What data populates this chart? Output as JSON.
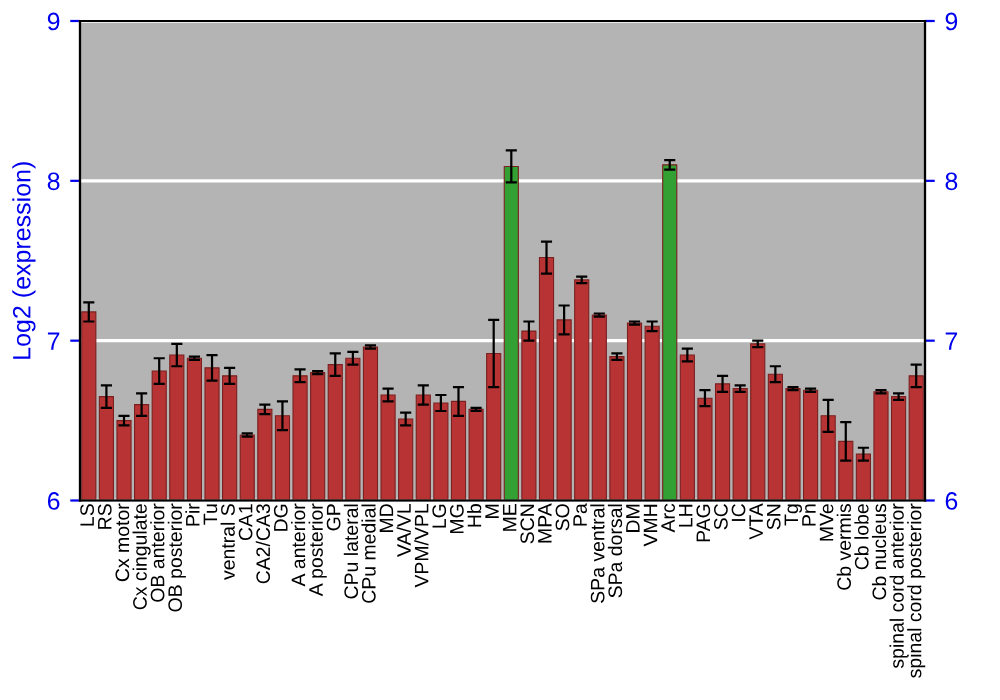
{
  "chart_data": {
    "type": "bar",
    "ylabel": "Log2 (expression)",
    "categories": [
      "LS",
      "RS",
      "Cx motor",
      "Cx cingulate",
      "OB anterior",
      "OB posterior",
      "Pir",
      "Tu",
      "ventral S",
      "CA1",
      "CA2/CA3",
      "DG",
      "A anterior",
      "A posterior",
      "GP",
      "CPu lateral",
      "CPu medial",
      "MD",
      "VA/VL",
      "VPM/VPL",
      "LG",
      "MG",
      "Hb",
      "M",
      "ME",
      "SCN",
      "MPA",
      "SO",
      "Pa",
      "SPa ventral",
      "SPa dorsal",
      "DM",
      "VMH",
      "Arc",
      "LH",
      "PAG",
      "SC",
      "IC",
      "VTA",
      "SN",
      "Tg",
      "Pn",
      "MVe",
      "Cb vermis",
      "Cb lobe",
      "Cb nucleus",
      "spinal cord anterior",
      "spinal cord posterior"
    ],
    "values": [
      7.18,
      6.65,
      6.5,
      6.6,
      6.81,
      6.91,
      6.89,
      6.83,
      6.78,
      6.41,
      6.57,
      6.53,
      6.78,
      6.8,
      6.85,
      6.89,
      6.96,
      6.66,
      6.51,
      6.66,
      6.61,
      6.62,
      6.57,
      6.92,
      8.09,
      7.06,
      7.52,
      7.13,
      7.38,
      7.16,
      6.9,
      7.11,
      7.09,
      8.1,
      6.91,
      6.64,
      6.73,
      6.7,
      6.98,
      6.79,
      6.7,
      6.69,
      6.53,
      6.37,
      6.29,
      6.68,
      6.65,
      6.78
    ],
    "errors": [
      0.06,
      0.07,
      0.03,
      0.07,
      0.08,
      0.07,
      0.01,
      0.08,
      0.05,
      0.01,
      0.03,
      0.09,
      0.04,
      0.01,
      0.07,
      0.04,
      0.01,
      0.04,
      0.04,
      0.06,
      0.05,
      0.09,
      0.01,
      0.21,
      0.1,
      0.06,
      0.1,
      0.09,
      0.02,
      0.01,
      0.02,
      0.01,
      0.03,
      0.03,
      0.04,
      0.05,
      0.05,
      0.02,
      0.02,
      0.05,
      0.01,
      0.01,
      0.1,
      0.12,
      0.04,
      0.01,
      0.02,
      0.07
    ],
    "colors": [
      "#b83434",
      "#b83434",
      "#b83434",
      "#b83434",
      "#b83434",
      "#b83434",
      "#b83434",
      "#b83434",
      "#b83434",
      "#b83434",
      "#b83434",
      "#b83434",
      "#b83434",
      "#b83434",
      "#b83434",
      "#b83434",
      "#b83434",
      "#b83434",
      "#b83434",
      "#b83434",
      "#b83434",
      "#b83434",
      "#b83434",
      "#b83434",
      "#32a032",
      "#b83434",
      "#b83434",
      "#b83434",
      "#b83434",
      "#b83434",
      "#b83434",
      "#b83434",
      "#b83434",
      "#32a032",
      "#b83434",
      "#b83434",
      "#b83434",
      "#b83434",
      "#b83434",
      "#b83434",
      "#b83434",
      "#b83434",
      "#b83434",
      "#b83434",
      "#b83434",
      "#b83434",
      "#b83434",
      "#b83434"
    ],
    "ylim": [
      6,
      9
    ],
    "yticks": [
      6,
      7,
      8,
      9
    ],
    "y2lim": [
      6,
      9
    ],
    "y2ticks": [
      6,
      7,
      8,
      9
    ],
    "grid": "y"
  }
}
